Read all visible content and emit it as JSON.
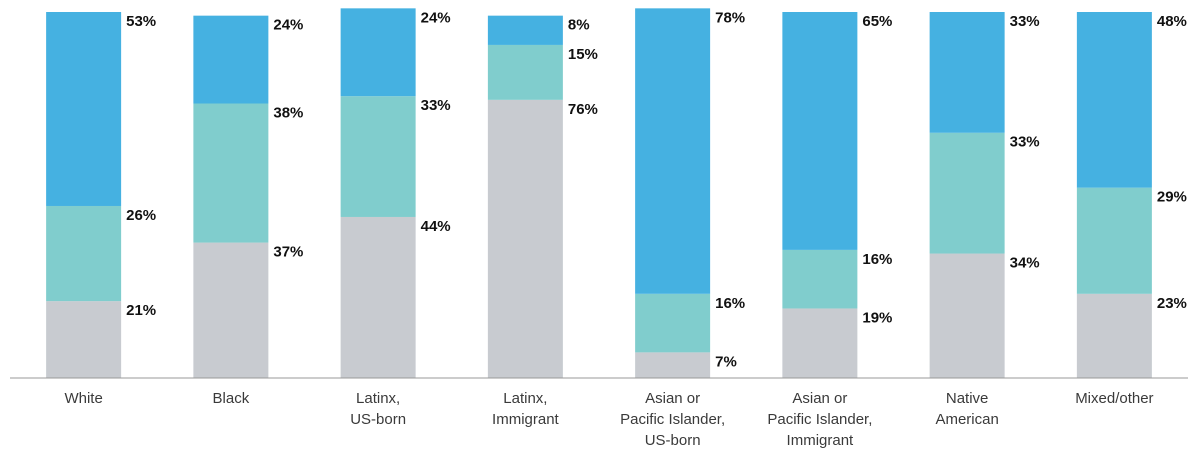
{
  "chart_data": {
    "type": "stacked_bar",
    "categories": [
      "White",
      "Black",
      "Latinx,\nUS-born",
      "Latinx,\nImmigrant",
      "Asian or\nPacific Islander,\nUS-born",
      "Asian or\nPacific Islander,\nImmigrant",
      "Native\nAmerican",
      "Mixed/other"
    ],
    "series": [
      {
        "color": "#c8cbd0",
        "values": [
          21,
          37,
          44,
          76,
          7,
          19,
          34,
          23
        ],
        "value_labels": [
          "21%",
          "37%",
          "44%",
          "76%",
          "7%",
          "19%",
          "34%",
          "23%"
        ]
      },
      {
        "color": "#80cdcd",
        "values": [
          26,
          38,
          33,
          15,
          16,
          16,
          33,
          29
        ],
        "value_labels": [
          "26%",
          "38%",
          "33%",
          "15%",
          "16%",
          "16%",
          "33%",
          "29%"
        ]
      },
      {
        "color": "#45b1e1",
        "values": [
          53,
          24,
          24,
          8,
          78,
          65,
          33,
          48
        ],
        "value_labels": [
          "53%",
          "24%",
          "24%",
          "8%",
          "78%",
          "65%",
          "33%",
          "48%"
        ]
      }
    ],
    "ylim": [
      0,
      100
    ]
  }
}
